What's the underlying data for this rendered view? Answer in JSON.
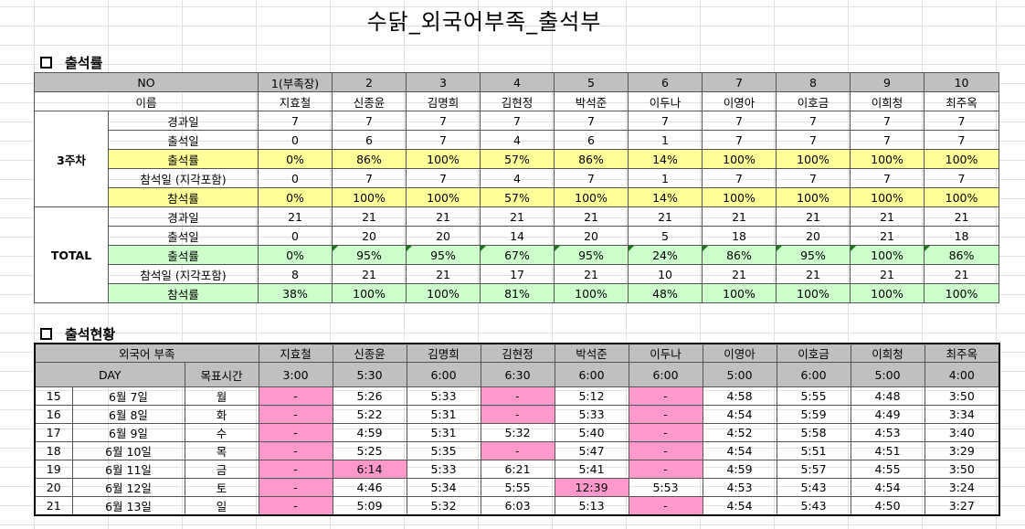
{
  "title": "수닭_외국어부족_출석부",
  "section1": {
    "heading": "출석률",
    "no_label": "NO",
    "name_label": "이름",
    "numbers": [
      "1(부족장)",
      "2",
      "3",
      "4",
      "5",
      "6",
      "7",
      "8",
      "9",
      "10"
    ],
    "names": [
      "지효철",
      "신종윤",
      "김명희",
      "김현정",
      "박석준",
      "이두나",
      "이영아",
      "이호금",
      "이희청",
      "최주옥"
    ],
    "groups": [
      {
        "label": "3주차",
        "rows": [
          {
            "label": "경과일",
            "values": [
              "7",
              "7",
              "7",
              "7",
              "7",
              "7",
              "7",
              "7",
              "7",
              "7"
            ]
          },
          {
            "label": "출석일",
            "values": [
              "0",
              "6",
              "7",
              "4",
              "6",
              "1",
              "7",
              "7",
              "7",
              "7"
            ]
          },
          {
            "label": "출석률",
            "values": [
              "0%",
              "86%",
              "100%",
              "57%",
              "86%",
              "14%",
              "100%",
              "100%",
              "100%",
              "100%"
            ]
          },
          {
            "label": "참석일 (지각포함)",
            "values": [
              "0",
              "7",
              "7",
              "4",
              "7",
              "1",
              "7",
              "7",
              "7",
              "7"
            ]
          },
          {
            "label": "참석률",
            "values": [
              "0%",
              "100%",
              "100%",
              "57%",
              "100%",
              "14%",
              "100%",
              "100%",
              "100%",
              "100%"
            ]
          }
        ]
      },
      {
        "label": "TOTAL",
        "rows": [
          {
            "label": "경과일",
            "values": [
              "21",
              "21",
              "21",
              "21",
              "21",
              "21",
              "21",
              "21",
              "21",
              "21"
            ]
          },
          {
            "label": "출석일",
            "values": [
              "0",
              "20",
              "20",
              "14",
              "20",
              "5",
              "18",
              "20",
              "21",
              "18"
            ]
          },
          {
            "label": "출석률",
            "values": [
              "0%",
              "95%",
              "95%",
              "67%",
              "95%",
              "24%",
              "86%",
              "95%",
              "100%",
              "86%"
            ]
          },
          {
            "label": "참석일 (지각포함)",
            "values": [
              "8",
              "21",
              "21",
              "17",
              "21",
              "10",
              "21",
              "21",
              "21",
              "21"
            ]
          },
          {
            "label": "참석률",
            "values": [
              "38%",
              "100%",
              "100%",
              "81%",
              "100%",
              "48%",
              "100%",
              "100%",
              "100%",
              "100%"
            ]
          }
        ]
      }
    ]
  },
  "section2": {
    "heading": "출석현황",
    "group_label": "외국어 부족",
    "day_label": "DAY",
    "target_label": "목표시간",
    "names": [
      "지효철",
      "신종윤",
      "김명희",
      "김현정",
      "박석준",
      "이두나",
      "이영아",
      "이호금",
      "이희청",
      "최주옥"
    ],
    "targets": [
      "3:00",
      "5:30",
      "6:00",
      "6:30",
      "6:00",
      "6:00",
      "5:00",
      "6:00",
      "5:00",
      "4:00"
    ],
    "days": [
      {
        "num": "15",
        "date": "6월 7일",
        "dow": "월",
        "times": [
          "-",
          "5:26",
          "5:33",
          "-",
          "5:12",
          "-",
          "4:58",
          "5:55",
          "4:48",
          "3:50"
        ],
        "pink": [
          0,
          3,
          5
        ]
      },
      {
        "num": "16",
        "date": "6월 8일",
        "dow": "화",
        "times": [
          "-",
          "5:22",
          "5:31",
          "-",
          "5:33",
          "-",
          "4:54",
          "5:59",
          "4:49",
          "3:34"
        ],
        "pink": [
          0,
          3,
          5
        ]
      },
      {
        "num": "17",
        "date": "6월 9일",
        "dow": "수",
        "times": [
          "-",
          "4:59",
          "5:31",
          "5:32",
          "5:40",
          "-",
          "4:52",
          "5:58",
          "4:53",
          "3:40"
        ],
        "pink": [
          0,
          5
        ]
      },
      {
        "num": "18",
        "date": "6월 10일",
        "dow": "목",
        "times": [
          "-",
          "5:25",
          "5:35",
          "-",
          "5:47",
          "-",
          "4:54",
          "5:51",
          "4:51",
          "3:29"
        ],
        "pink": [
          0,
          3,
          5
        ]
      },
      {
        "num": "19",
        "date": "6월 11일",
        "dow": "금",
        "times": [
          "-",
          "6:14",
          "5:33",
          "6:21",
          "5:41",
          "-",
          "4:59",
          "5:57",
          "4:55",
          "3:50"
        ],
        "pink": [
          0,
          1,
          5
        ]
      },
      {
        "num": "20",
        "date": "6월 12일",
        "dow": "토",
        "times": [
          "-",
          "4:46",
          "5:34",
          "5:55",
          "12:39",
          "5:53",
          "4:53",
          "5:43",
          "4:54",
          "3:24"
        ],
        "pink": [
          0,
          4
        ]
      },
      {
        "num": "21",
        "date": "6월 13일",
        "dow": "일",
        "times": [
          "-",
          "5:09",
          "5:32",
          "6:03",
          "5:13",
          "-",
          "4:54",
          "5:43",
          "4:50",
          "3:27"
        ],
        "pink": [
          0,
          5
        ]
      }
    ]
  },
  "colors": {
    "header": "#c0c0c0",
    "yellow_rate": "#ffff99",
    "green_rate": "#ccffcc",
    "pink_flag": "#ff99cc"
  }
}
